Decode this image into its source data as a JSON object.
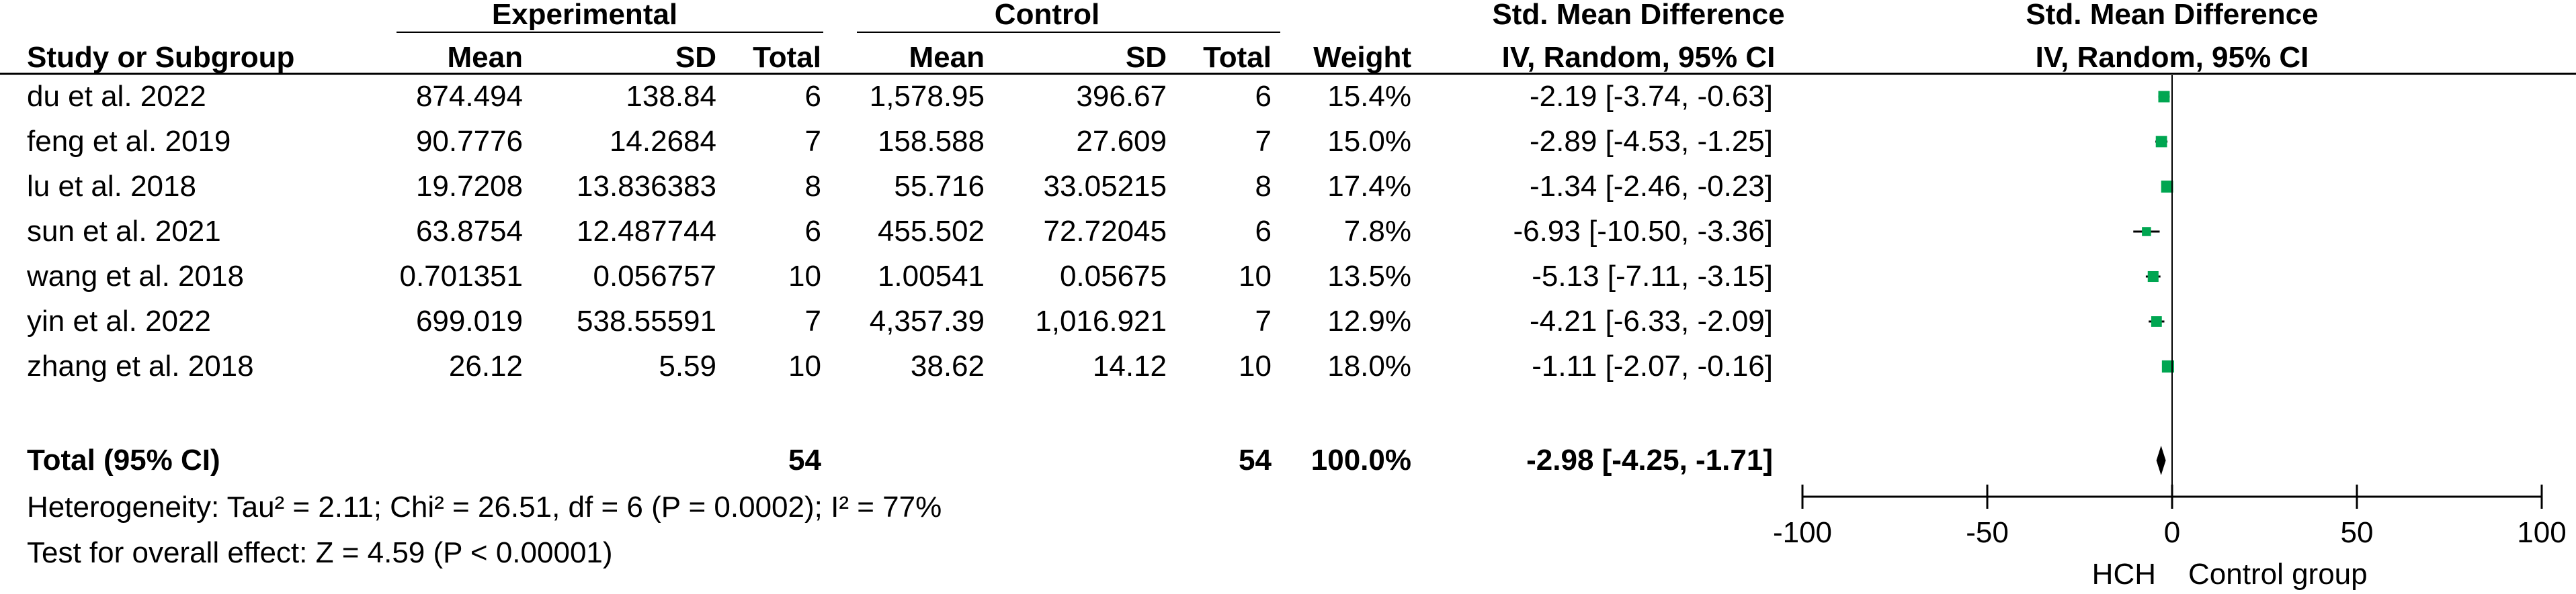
{
  "chart_data": {
    "type": "forest-plot",
    "header": {
      "group_experimental": "Experimental",
      "group_control": "Control",
      "smd_label": "Std. Mean Difference",
      "plot_label": "Std. Mean Difference",
      "columns": {
        "study": "Study or Subgroup",
        "exp_mean": "Mean",
        "exp_sd": "SD",
        "exp_total": "Total",
        "ctl_mean": "Mean",
        "ctl_sd": "SD",
        "ctl_total": "Total",
        "weight": "Weight",
        "ci": "IV, Random, 95% CI",
        "plot_ci": "IV, Random, 95% CI"
      }
    },
    "studies": [
      {
        "study": "du et al. 2022",
        "exp_mean": "874.494",
        "exp_sd": "138.84",
        "exp_total": "6",
        "ctl_mean": "1,578.95",
        "ctl_sd": "396.67",
        "ctl_total": "6",
        "weight": "15.4%",
        "ci_text": "-2.19 [-3.74, -0.63]",
        "smd": -2.19,
        "lower": -3.74,
        "upper": -0.63,
        "weight_value": 15.4
      },
      {
        "study": "feng et al. 2019",
        "exp_mean": "90.7776",
        "exp_sd": "14.2684",
        "exp_total": "7",
        "ctl_mean": "158.588",
        "ctl_sd": "27.609",
        "ctl_total": "7",
        "weight": "15.0%",
        "ci_text": "-2.89 [-4.53, -1.25]",
        "smd": -2.89,
        "lower": -4.53,
        "upper": -1.25,
        "weight_value": 15.0
      },
      {
        "study": "lu et al. 2018",
        "exp_mean": "19.7208",
        "exp_sd": "13.836383",
        "exp_total": "8",
        "ctl_mean": "55.716",
        "ctl_sd": "33.05215",
        "ctl_total": "8",
        "weight": "17.4%",
        "ci_text": "-1.34 [-2.46, -0.23]",
        "smd": -1.34,
        "lower": -2.46,
        "upper": -0.23,
        "weight_value": 17.4
      },
      {
        "study": "sun et al. 2021",
        "exp_mean": "63.8754",
        "exp_sd": "12.487744",
        "exp_total": "6",
        "ctl_mean": "455.502",
        "ctl_sd": "72.72045",
        "ctl_total": "6",
        "weight": "7.8%",
        "ci_text": "-6.93 [-10.50, -3.36]",
        "smd": -6.93,
        "lower": -10.5,
        "upper": -3.36,
        "weight_value": 7.8
      },
      {
        "study": "wang et al. 2018",
        "exp_mean": "0.701351",
        "exp_sd": "0.056757",
        "exp_total": "10",
        "ctl_mean": "1.00541",
        "ctl_sd": "0.05675",
        "ctl_total": "10",
        "weight": "13.5%",
        "ci_text": "-5.13 [-7.11, -3.15]",
        "smd": -5.13,
        "lower": -7.11,
        "upper": -3.15,
        "weight_value": 13.5
      },
      {
        "study": "yin et al. 2022",
        "exp_mean": "699.019",
        "exp_sd": "538.55591",
        "exp_total": "7",
        "ctl_mean": "4,357.39",
        "ctl_sd": "1,016.921",
        "ctl_total": "7",
        "weight": "12.9%",
        "ci_text": "-4.21 [-6.33, -2.09]",
        "smd": -4.21,
        "lower": -6.33,
        "upper": -2.09,
        "weight_value": 12.9
      },
      {
        "study": "zhang et al. 2018",
        "exp_mean": "26.12",
        "exp_sd": "5.59",
        "exp_total": "10",
        "ctl_mean": "38.62",
        "ctl_sd": "14.12",
        "ctl_total": "10",
        "weight": "18.0%",
        "ci_text": "-1.11 [-2.07, -0.16]",
        "smd": -1.11,
        "lower": -2.07,
        "upper": -0.16,
        "weight_value": 18.0
      }
    ],
    "total": {
      "label": "Total (95% CI)",
      "exp_total": "54",
      "ctl_total": "54",
      "weight": "100.0%",
      "ci_text": "-2.98 [-4.25, -1.71]",
      "smd": -2.98,
      "lower": -4.25,
      "upper": -1.71
    },
    "heterogeneity": "Heterogeneity: Tau² = 2.11; Chi² = 26.51, df = 6 (P = 0.0002); I² = 77%",
    "overall_effect": "Test for overall effect: Z = 4.59 (P < 0.00001)",
    "axis": {
      "xlim": [
        -100,
        100
      ],
      "ticks": [
        -100,
        -50,
        0,
        50,
        100
      ],
      "tick_labels": [
        "-100",
        "-50",
        "0",
        "50",
        "100"
      ],
      "left_label": "HCH",
      "right_label": "Control group"
    },
    "colors": {
      "marker": "#00a651",
      "diamond": "#000000",
      "text": "#000000"
    }
  }
}
